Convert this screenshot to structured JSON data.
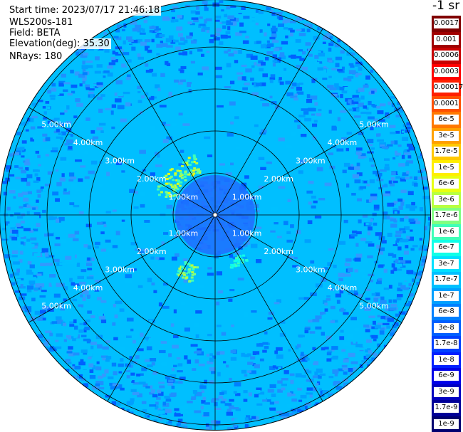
{
  "header": {
    "start_time": "Start time: 2023/07/17 21:46:18",
    "instrument": "WLS200s-181",
    "field": "Field: BETA",
    "elevation": "Elevation(deg): 35.30",
    "nrays": "NRays: 180"
  },
  "ppi": {
    "range_rings_km": [
      1.0,
      2.0,
      3.0,
      4.0,
      5.0
    ],
    "ring_labels": [
      "1.00km",
      "2.00km",
      "3.00km",
      "4.00km",
      "5.00km"
    ],
    "spoke_step_deg": 30,
    "background_color": "#00bfff",
    "ring_color": "#000000"
  },
  "colorbar": {
    "unit": "-1 sr",
    "labels": [
      "0.0017",
      "0.001",
      "0.0006",
      "0.0003",
      "0.00017",
      "0.0001",
      "6e-5",
      "3e-5",
      "1.7e-5",
      "1e-5",
      "6e-6",
      "3e-6",
      "1.7e-6",
      "1e-6",
      "6e-7",
      "3e-7",
      "1.7e-7",
      "1e-7",
      "6e-8",
      "3e-8",
      "1.7e-8",
      "1e-8",
      "6e-9",
      "3e-9",
      "1.7e-9",
      "1e-9"
    ],
    "colors": [
      "#800000",
      "#a00000",
      "#c80000",
      "#ff0000",
      "#ff2000",
      "#ff5000",
      "#ff7800",
      "#ffa000",
      "#ffc800",
      "#ffee00",
      "#e8ff10",
      "#b8ff40",
      "#80ff80",
      "#40ffb8",
      "#10ffe8",
      "#00e0ff",
      "#00c0ff",
      "#00a0ff",
      "#0080ff",
      "#0060ff",
      "#0040ff",
      "#0020ff",
      "#0000e8",
      "#0000c0",
      "#000098",
      "#000070"
    ]
  }
}
